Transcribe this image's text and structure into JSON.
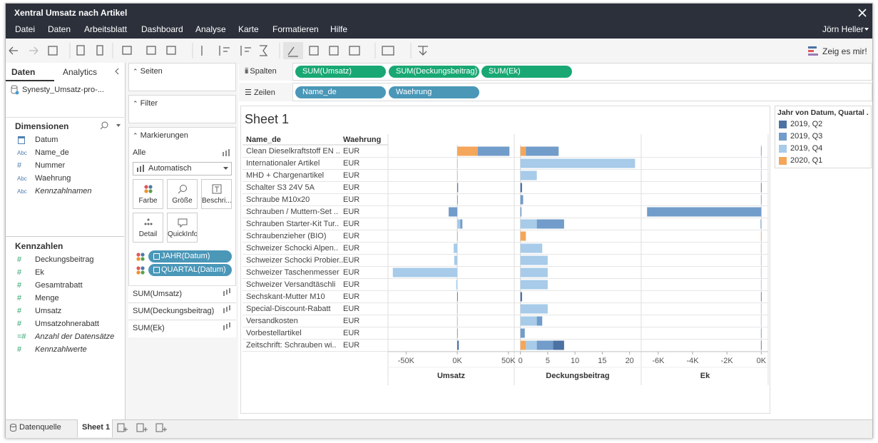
{
  "window": {
    "title": "Xentral Umsatz nach Artikel",
    "menu": [
      "Datei",
      "Daten",
      "Arbeitsblatt",
      "Dashboard",
      "Analyse",
      "Karte",
      "Formatieren",
      "Hilfe"
    ],
    "user": "Jörn Heller"
  },
  "toolbar": {
    "show_me": "Zeig es mir!"
  },
  "data_pane": {
    "tabs": [
      "Daten",
      "Analytics"
    ],
    "source": "Synesty_Umsatz-pro-...",
    "dimensions_title": "Dimensionen",
    "dimensions": [
      {
        "name": "Datum"
      },
      {
        "icon": "Abc",
        "name": "Name_de"
      },
      {
        "icon": "#",
        "name": "Nummer"
      },
      {
        "icon": "Abc",
        "name": "Waehrung"
      },
      {
        "icon": "Abc",
        "name": "Kennzahlnamen",
        "italic": true
      }
    ],
    "measures_title": "Kennzahlen",
    "measures": [
      {
        "icon": "#",
        "name": "Deckungsbeitrag"
      },
      {
        "icon": "#",
        "name": "Ek"
      },
      {
        "icon": "#",
        "name": "Gesamtrabatt"
      },
      {
        "icon": "#",
        "name": "Menge"
      },
      {
        "icon": "#",
        "name": "Umsatz"
      },
      {
        "icon": "#",
        "name": "Umsatzohnerabatt"
      },
      {
        "icon": "=#",
        "name": "Anzahl der Datensätze",
        "italic": true
      },
      {
        "icon": "#",
        "name": "Kennzahlwerte",
        "italic": true
      }
    ]
  },
  "cards": {
    "pages": "Seiten",
    "filters": "Filter",
    "marks": "Markierungen",
    "marks_all": "Alle",
    "mark_type": "Automatisch",
    "buttons": [
      "Farbe",
      "Größe",
      "Beschri...",
      "Detail",
      "QuickInfo"
    ],
    "mark_pills": [
      "JAHR(Datum)",
      "QUARTAL(Datum)"
    ],
    "measure_cards": [
      "SUM(Umsatz)",
      "SUM(Deckungsbeitrag)",
      "SUM(Ek)"
    ]
  },
  "shelves": {
    "columns_label": "Spalten",
    "columns": [
      "SUM(Umsatz)",
      "SUM(Deckungsbeitrag)",
      "SUM(Ek)"
    ],
    "rows_label": "Zeilen",
    "rows": [
      "Name_de",
      "Waehrung"
    ]
  },
  "sheet_title": "Sheet 1",
  "row_headers": {
    "header": [
      "Name_de",
      "Waehrung"
    ],
    "currency": [
      "EUR",
      "EUR",
      "EUR",
      "EUR",
      "EUR",
      "EUR",
      "EUR",
      "EUR",
      "EUR",
      "EUR",
      "EUR",
      "EUR",
      "EUR",
      "EUR",
      "EUR",
      "EUR",
      "EUR"
    ]
  },
  "chart_data": [
    {
      "type": "bar",
      "xlabel": "Umsatz",
      "categories": [
        "Clean Dieselkraftstoff EN ..",
        "Internationaler Artikel",
        "MHD + Chargenartikel",
        "Schalter S3 24V 5A",
        "Schraube M10x20",
        "Schrauben / Muttern-Set ..",
        "Schrauben Starter-Kit Tur..",
        "Schraubenzieher (BIO)",
        "Schweizer Schocki Alpen..",
        "Schweizer Schocki Probier..",
        "Schweizer Taschenmesser",
        "Schweizer Versandtäschli",
        "Sechskant-Mutter M10",
        "Special-Discount-Rabatt",
        "Versandkosten",
        "Vorbestellartikel",
        "Zeitschrift: Schrauben wi.."
      ],
      "legend": {
        "title": "Jahr von Datum, Quartal ...",
        "position": "right"
      },
      "xlim": [
        -67000,
        55000
      ],
      "xticks": [
        {
          "value": -50000,
          "label": "-50K"
        },
        {
          "value": 0,
          "label": "0K"
        },
        {
          "value": 50000,
          "label": "50K"
        }
      ],
      "series": [
        {
          "name": "2019, Q2",
          "color": "#4b72a3",
          "values": [
            null,
            null,
            null,
            800,
            null,
            null,
            null,
            null,
            null,
            null,
            null,
            null,
            400,
            null,
            null,
            null,
            1500
          ]
        },
        {
          "name": "2019, Q3",
          "color": "#729cc9",
          "values": [
            31000,
            null,
            null,
            null,
            600,
            -8400,
            2000,
            null,
            null,
            null,
            null,
            null,
            null,
            null,
            null,
            200,
            null
          ]
        },
        {
          "name": "2019, Q4",
          "color": "#a7cbe9",
          "values": [
            null,
            400,
            300,
            null,
            null,
            null,
            3000,
            null,
            -3500,
            -3000,
            -63000,
            -1000,
            null,
            300,
            300,
            null,
            null
          ]
        },
        {
          "name": "2020, Q1",
          "color": "#f4a65a",
          "values": [
            20000,
            null,
            null,
            null,
            null,
            null,
            null,
            400,
            null,
            null,
            null,
            null,
            null,
            null,
            null,
            null,
            null
          ]
        }
      ]
    },
    {
      "type": "bar",
      "xlabel": "Deckungsbeitrag",
      "xlim": [
        -1,
        22
      ],
      "xticks": [
        0,
        5,
        10,
        15,
        20
      ],
      "series": [
        {
          "values": [
            null,
            null,
            null,
            0.3,
            null,
            null,
            null,
            null,
            null,
            null,
            null,
            null,
            0.3,
            null,
            null,
            null,
            2
          ]
        },
        {
          "values": [
            6,
            null,
            null,
            null,
            0.5,
            0.2,
            5,
            null,
            null,
            null,
            null,
            null,
            null,
            null,
            1,
            0.8,
            3
          ]
        },
        {
          "values": [
            null,
            21,
            3,
            null,
            null,
            null,
            3,
            null,
            4,
            5,
            5,
            5,
            null,
            5,
            3,
            null,
            2
          ]
        },
        {
          "values": [
            1,
            null,
            null,
            null,
            null,
            null,
            null,
            1,
            null,
            null,
            null,
            null,
            null,
            null,
            null,
            null,
            1
          ]
        }
      ]
    },
    {
      "type": "bar",
      "xlabel": "Ek",
      "xlim": [
        -6950,
        400
      ],
      "xticks": [
        {
          "value": -6000,
          "label": "-6K"
        },
        {
          "value": -4000,
          "label": "-4K"
        },
        {
          "value": -2000,
          "label": "-2K"
        },
        {
          "value": 0,
          "label": "0K"
        }
      ],
      "series": [
        {
          "values": [
            null,
            null,
            null,
            -20,
            null,
            null,
            null,
            null,
            null,
            null,
            null,
            null,
            -20,
            null,
            null,
            null,
            -20
          ]
        },
        {
          "values": [
            -20,
            null,
            null,
            null,
            -20,
            -6650,
            -20,
            null,
            null,
            null,
            null,
            null,
            null,
            null,
            null,
            -20,
            null
          ]
        },
        {
          "values": [
            null,
            -20,
            -20,
            null,
            null,
            null,
            -20,
            null,
            -20,
            -20,
            -20,
            -20,
            null,
            -20,
            -20,
            null,
            null
          ]
        },
        {
          "values": [
            null,
            null,
            null,
            null,
            null,
            null,
            null,
            -20,
            null,
            null,
            null,
            null,
            null,
            null,
            null,
            null,
            null
          ]
        }
      ]
    }
  ],
  "tabs": [
    "Datenquelle",
    "Sheet 1"
  ]
}
